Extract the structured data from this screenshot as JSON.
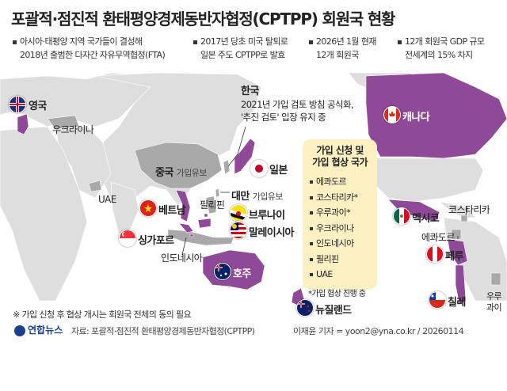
{
  "title": "포괄적·점진적 환태평양경제동반자협정(CPTPP) 회원국 현황",
  "notes": [
    "아시아·태평양 지역 국가들이 결성해",
    "2018년 출범한 다자간 자유무역협정(FTA)",
    "2017년 당초 미국 탈퇴로",
    "일본 주도 CPTPP로 발효",
    "2026년 1월 현재",
    "12개 회원국",
    "12개 회원국 GDP 규모",
    "전세계의 15% 차지"
  ],
  "colors": {
    "member": "#8e4a97",
    "applicant": "#a9a9a9",
    "land": "#dedede",
    "highlight": "#fdf1c4"
  },
  "members": [
    {
      "name": "영국",
      "flag": "uk-flag"
    },
    {
      "name": "캐나다",
      "flag": "canada-flag"
    },
    {
      "name": "일본",
      "flag": "japan-flag"
    },
    {
      "name": "베트남",
      "flag": "vietnam-flag"
    },
    {
      "name": "브루나이",
      "flag": "brunei-flag"
    },
    {
      "name": "말레이시아",
      "flag": "malaysia-flag"
    },
    {
      "name": "싱가포르",
      "flag": "singapore-flag"
    },
    {
      "name": "호주",
      "flag": "australia-flag"
    },
    {
      "name": "뉴질랜드",
      "flag": "newzealand-flag"
    },
    {
      "name": "멕시코",
      "flag": "mexico-flag"
    },
    {
      "name": "페루",
      "flag": "peru-flag"
    },
    {
      "name": "칠레",
      "flag": "chile-flag"
    }
  ],
  "labels": {
    "ukraine": "우크라이나",
    "china": "중국",
    "china_sub": "가입유보",
    "uae": "UAE",
    "taiwan": "대만",
    "taiwan_sub": "가입유보",
    "philippines": "필리핀",
    "indonesia": "인도네시아",
    "costarica": "코스타리카",
    "ecuador": "에콰도르",
    "uruguay_1": "우루",
    "uruguay_2": "과이"
  },
  "korea": {
    "name": "한국",
    "line1": "2021년 가입 검토 방침 공식화,",
    "line2": "'추진 검토' 입장 유지 중"
  },
  "applicants_box": {
    "title_1": "가입 신청 및",
    "title_2": "가입 협상 국가",
    "items": [
      "에콰도르",
      "코스타리카*",
      "우루과이*",
      "우크라이나",
      "인도네시아",
      "필리핀",
      "UAE"
    ],
    "footnote": "*가입 협상 진행 중"
  },
  "footer": {
    "note": "※ 가입 신청 후 협상 개시는 회원국 전체의 동의 필요",
    "logo": "연합뉴스",
    "source": "자료: 포괄적·점진적 환태평양경제동반자협정(CPTPP)",
    "credit": "이재윤 기자 = yoon2@yna.co.kr / 20260114"
  }
}
